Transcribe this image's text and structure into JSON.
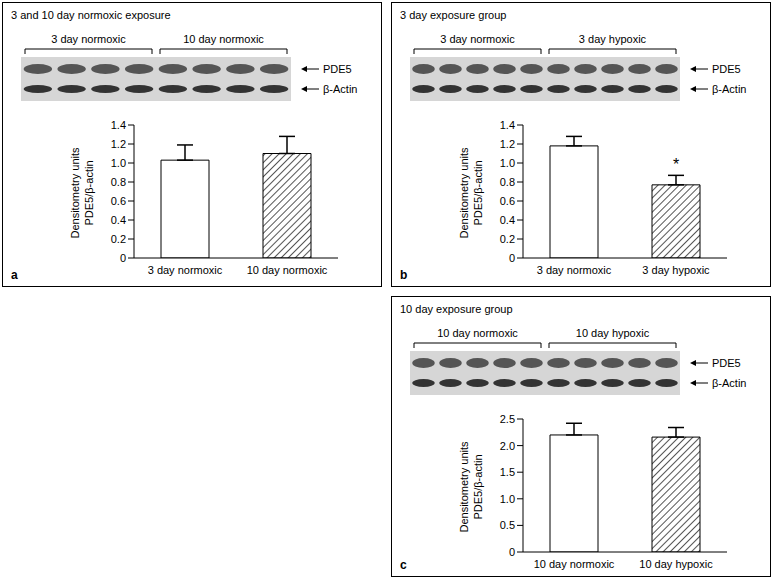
{
  "chart_data": [
    {
      "type": "bar",
      "panel": "a",
      "title": "3 and 10 day normoxic exposure",
      "blot": {
        "groups": [
          "3 day normoxic",
          "10 day normoxic"
        ],
        "bands": [
          "PDE5",
          "β-Actin"
        ]
      },
      "categories": [
        "3 day normoxic",
        "10 day normoxic"
      ],
      "values": [
        1.03,
        1.1
      ],
      "errors": [
        0.16,
        0.18
      ],
      "colors": [
        "#ffffff",
        "#555555"
      ],
      "ylabel": "Densitometry units PDE5/β-actin",
      "ylim": [
        0,
        1.4
      ],
      "yticks": [
        0,
        0.2,
        0.4,
        0.6,
        0.8,
        {
          "value": 1,
          "label": "1.0"
        },
        1.2,
        1.4
      ]
    },
    {
      "type": "bar",
      "panel": "b",
      "title": "3 day exposure group",
      "blot": {
        "groups": [
          "3 day normoxic",
          "3 day hypoxic"
        ],
        "bands": [
          "PDE5",
          "β-Actin"
        ]
      },
      "categories": [
        "3 day normoxic",
        "3 day hypoxic"
      ],
      "values": [
        1.18,
        0.77
      ],
      "errors": [
        0.1,
        0.1
      ],
      "colors": [
        "#ffffff",
        "#555555"
      ],
      "ylabel": "Densitometry units PDE5/β-actin",
      "ylim": [
        0,
        1.4
      ],
      "yticks": [
        0,
        0.2,
        0.4,
        0.6,
        0.8,
        {
          "value": 1,
          "label": "1.0"
        },
        1.2,
        1.4
      ],
      "annotations": [
        {
          "text": "*",
          "category": "3 day hypoxic"
        }
      ]
    },
    {
      "type": "bar",
      "panel": "c",
      "title": "10 day exposure group",
      "blot": {
        "groups": [
          "10 day normoxic",
          "10 day hypoxic"
        ],
        "bands": [
          "PDE5",
          "β-Actin"
        ]
      },
      "categories": [
        "10 day normoxic",
        "10 day hypoxic"
      ],
      "values": [
        2.2,
        2.16
      ],
      "errors": [
        0.22,
        0.18
      ],
      "colors": [
        "#ffffff",
        "#555555"
      ],
      "ylabel": "Densitometry units PDE5/β-actin",
      "ylim": [
        0,
        2.5
      ],
      "yticks": [
        0,
        0.5,
        {
          "value": 1,
          "label": "1.0"
        },
        1.5,
        {
          "value": 2,
          "label": "2.0"
        },
        2.5
      ]
    }
  ]
}
